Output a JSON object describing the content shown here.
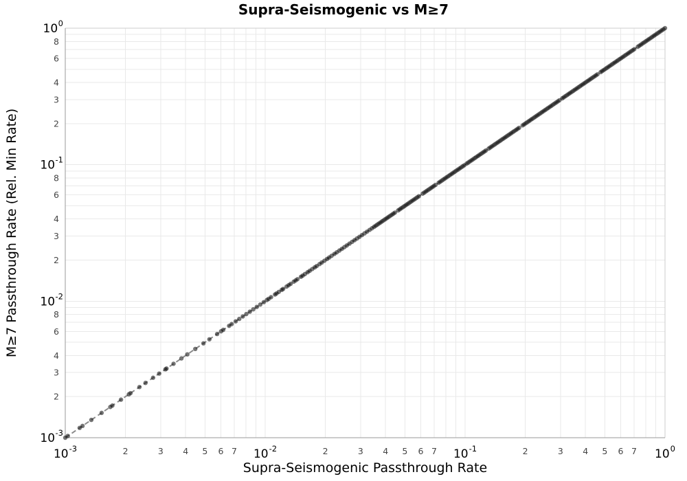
{
  "page": {
    "background": "#ffffff"
  },
  "chart_data": {
    "type": "scatter",
    "title": "Supra-Seismogenic vs M≥7",
    "xlabel": "Supra-Seismogenic Passthrough Rate",
    "ylabel": "M≥7 Passthrough Rate (Rel. Min Rate)",
    "x_scale": "log",
    "y_scale": "log",
    "xlim": [
      0.001,
      1
    ],
    "ylim": [
      0.001,
      1
    ],
    "grid": true,
    "legend": "none",
    "relationship": "all scatter points lie on the identity line y = x; density increases toward 1 where markers merge into a solid band",
    "reference_line": {
      "name": "identity-line",
      "x0": 0.001,
      "y0": 0.001,
      "x1": 1,
      "y1": 1,
      "style": "dashed",
      "color": "#8a8a8a",
      "width": 2,
      "dash": "7 4.5"
    },
    "marker": {
      "color": "#1a1a1a",
      "opacity": 0.6,
      "radius_px": 3.2
    },
    "y_rule": "y_equals_x",
    "x_points": [
      0.001,
      0.00103,
      0.00118,
      0.00122,
      0.00135,
      0.00152,
      0.00168,
      0.00172,
      0.0019,
      0.00208,
      0.00212,
      0.00235,
      0.00252,
      0.00275,
      0.00295,
      0.00317,
      0.00321,
      0.00348,
      0.00381,
      0.00408,
      0.00447,
      0.00491,
      0.00526,
      0.00575,
      0.00602,
      0.00617,
      0.0066,
      0.0068,
      0.00712,
      0.00742,
      0.00773,
      0.00805,
      0.00838,
      0.00872,
      0.00908,
      0.00945,
      0.00984,
      0.0102,
      0.0104,
      0.0107,
      0.0112,
      0.0114,
      0.0117,
      0.0121,
      0.0123,
      0.0128,
      0.0131,
      0.0134,
      0.0139,
      0.0142,
      0.0145,
      0.0151,
      0.0154,
      0.0158,
      0.0163,
      0.0167,
      0.0172,
      0.0177,
      0.0181,
      0.0187,
      0.0192,
      0.0198,
      0.0204,
      0.0209,
      0.0215,
      0.0222,
      0.0228,
      0.0235,
      0.0242,
      0.0249,
      0.0256,
      0.0264,
      0.0272,
      0.028,
      0.0288,
      0.0296,
      0.0305,
      0.0314,
      0.0323,
      0.0333,
      0.0342
    ],
    "dense_band_log10_segments": [
      {
        "start": -1.455,
        "end": -1.345,
        "step": 0.008
      },
      {
        "start": -1.335,
        "end": -1.225,
        "step": 0.008
      },
      {
        "start": -1.212,
        "end": -1.148,
        "step": 0.008
      },
      {
        "start": -1.132,
        "end": -1.004,
        "step": 0.008
      },
      {
        "start": -0.992,
        "end": -0.896,
        "step": 0.008
      },
      {
        "start": -0.882,
        "end": -0.726,
        "step": 0.008
      },
      {
        "start": -0.712,
        "end": -0.528,
        "step": 0.008
      },
      {
        "start": -0.514,
        "end": -0.336,
        "step": 0.008
      },
      {
        "start": -0.322,
        "end": -0.152,
        "step": 0.008
      },
      {
        "start": -0.136,
        "end": 0.0,
        "step": 0.008
      }
    ],
    "axis_ticks": {
      "x_major_exponents": [
        -3,
        -2,
        -1,
        0
      ],
      "x_minor_digits": [
        2,
        3,
        4,
        5,
        6,
        7
      ],
      "x_minor_decades": [
        -3,
        -2,
        -1
      ],
      "y_major_exponents": [
        0,
        -1,
        -2,
        -3
      ],
      "y_minor_digits": [
        2,
        3,
        4,
        6,
        8
      ],
      "y_minor_decades": [
        -1,
        -2,
        -3
      ]
    },
    "colors": {
      "grid": "#e9e9e9",
      "axis_line": "#999999",
      "border": "#cccccc",
      "tick_major": "#000000",
      "tick_minor": "#444444",
      "title": "#000000",
      "label": "#000000"
    }
  }
}
